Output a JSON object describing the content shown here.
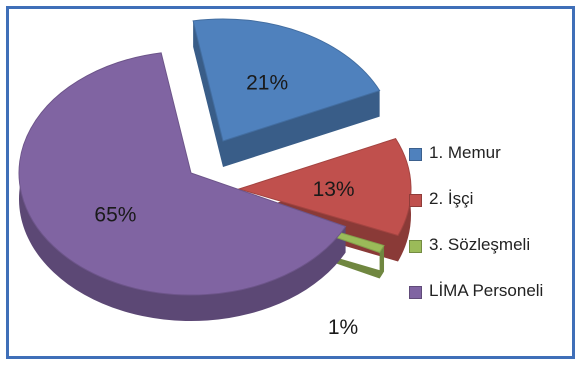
{
  "chart_data": {
    "type": "pie",
    "title": "",
    "categories": [
      "1. Memur",
      "2. İşçi",
      "3. Sözleşmeli",
      "LİMA Personeli"
    ],
    "values": [
      21,
      13,
      1,
      65
    ],
    "labels": [
      "21%",
      "13%",
      "1%",
      "65%"
    ],
    "colors": [
      "#4f81bd",
      "#c0504d",
      "#9bbb59",
      "#8064a2"
    ],
    "legend_position": "right",
    "style": "3d-exploded"
  }
}
